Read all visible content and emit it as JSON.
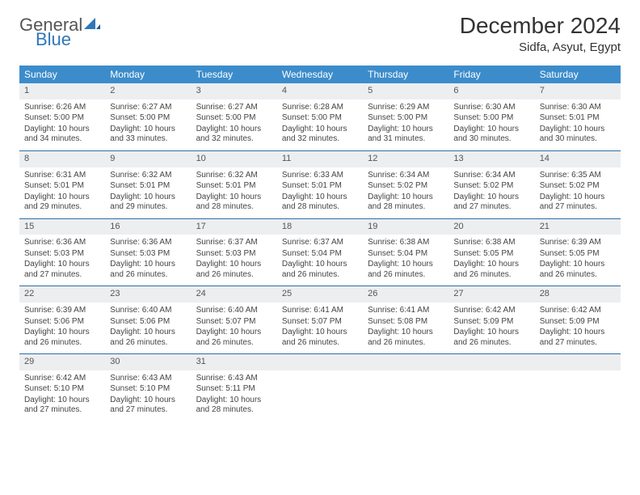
{
  "logo": {
    "line1": "General",
    "line2": "Blue"
  },
  "title": "December 2024",
  "location": "Sidfa, Asyut, Egypt",
  "colors": {
    "header_bg": "#3c8ccb",
    "daynum_bg": "#eceef0",
    "week_border": "#2f6fa5",
    "logo_blue": "#2f77b8"
  },
  "days_of_week": [
    "Sunday",
    "Monday",
    "Tuesday",
    "Wednesday",
    "Thursday",
    "Friday",
    "Saturday"
  ],
  "weeks": [
    [
      {
        "n": "1",
        "sr": "6:26 AM",
        "ss": "5:00 PM",
        "dl": "10 hours and 34 minutes."
      },
      {
        "n": "2",
        "sr": "6:27 AM",
        "ss": "5:00 PM",
        "dl": "10 hours and 33 minutes."
      },
      {
        "n": "3",
        "sr": "6:27 AM",
        "ss": "5:00 PM",
        "dl": "10 hours and 32 minutes."
      },
      {
        "n": "4",
        "sr": "6:28 AM",
        "ss": "5:00 PM",
        "dl": "10 hours and 32 minutes."
      },
      {
        "n": "5",
        "sr": "6:29 AM",
        "ss": "5:00 PM",
        "dl": "10 hours and 31 minutes."
      },
      {
        "n": "6",
        "sr": "6:30 AM",
        "ss": "5:00 PM",
        "dl": "10 hours and 30 minutes."
      },
      {
        "n": "7",
        "sr": "6:30 AM",
        "ss": "5:01 PM",
        "dl": "10 hours and 30 minutes."
      }
    ],
    [
      {
        "n": "8",
        "sr": "6:31 AM",
        "ss": "5:01 PM",
        "dl": "10 hours and 29 minutes."
      },
      {
        "n": "9",
        "sr": "6:32 AM",
        "ss": "5:01 PM",
        "dl": "10 hours and 29 minutes."
      },
      {
        "n": "10",
        "sr": "6:32 AM",
        "ss": "5:01 PM",
        "dl": "10 hours and 28 minutes."
      },
      {
        "n": "11",
        "sr": "6:33 AM",
        "ss": "5:01 PM",
        "dl": "10 hours and 28 minutes."
      },
      {
        "n": "12",
        "sr": "6:34 AM",
        "ss": "5:02 PM",
        "dl": "10 hours and 28 minutes."
      },
      {
        "n": "13",
        "sr": "6:34 AM",
        "ss": "5:02 PM",
        "dl": "10 hours and 27 minutes."
      },
      {
        "n": "14",
        "sr": "6:35 AM",
        "ss": "5:02 PM",
        "dl": "10 hours and 27 minutes."
      }
    ],
    [
      {
        "n": "15",
        "sr": "6:36 AM",
        "ss": "5:03 PM",
        "dl": "10 hours and 27 minutes."
      },
      {
        "n": "16",
        "sr": "6:36 AM",
        "ss": "5:03 PM",
        "dl": "10 hours and 26 minutes."
      },
      {
        "n": "17",
        "sr": "6:37 AM",
        "ss": "5:03 PM",
        "dl": "10 hours and 26 minutes."
      },
      {
        "n": "18",
        "sr": "6:37 AM",
        "ss": "5:04 PM",
        "dl": "10 hours and 26 minutes."
      },
      {
        "n": "19",
        "sr": "6:38 AM",
        "ss": "5:04 PM",
        "dl": "10 hours and 26 minutes."
      },
      {
        "n": "20",
        "sr": "6:38 AM",
        "ss": "5:05 PM",
        "dl": "10 hours and 26 minutes."
      },
      {
        "n": "21",
        "sr": "6:39 AM",
        "ss": "5:05 PM",
        "dl": "10 hours and 26 minutes."
      }
    ],
    [
      {
        "n": "22",
        "sr": "6:39 AM",
        "ss": "5:06 PM",
        "dl": "10 hours and 26 minutes."
      },
      {
        "n": "23",
        "sr": "6:40 AM",
        "ss": "5:06 PM",
        "dl": "10 hours and 26 minutes."
      },
      {
        "n": "24",
        "sr": "6:40 AM",
        "ss": "5:07 PM",
        "dl": "10 hours and 26 minutes."
      },
      {
        "n": "25",
        "sr": "6:41 AM",
        "ss": "5:07 PM",
        "dl": "10 hours and 26 minutes."
      },
      {
        "n": "26",
        "sr": "6:41 AM",
        "ss": "5:08 PM",
        "dl": "10 hours and 26 minutes."
      },
      {
        "n": "27",
        "sr": "6:42 AM",
        "ss": "5:09 PM",
        "dl": "10 hours and 26 minutes."
      },
      {
        "n": "28",
        "sr": "6:42 AM",
        "ss": "5:09 PM",
        "dl": "10 hours and 27 minutes."
      }
    ],
    [
      {
        "n": "29",
        "sr": "6:42 AM",
        "ss": "5:10 PM",
        "dl": "10 hours and 27 minutes."
      },
      {
        "n": "30",
        "sr": "6:43 AM",
        "ss": "5:10 PM",
        "dl": "10 hours and 27 minutes."
      },
      {
        "n": "31",
        "sr": "6:43 AM",
        "ss": "5:11 PM",
        "dl": "10 hours and 28 minutes."
      },
      {
        "empty": true
      },
      {
        "empty": true
      },
      {
        "empty": true
      },
      {
        "empty": true
      }
    ]
  ],
  "labels": {
    "sunrise": "Sunrise: ",
    "sunset": "Sunset: ",
    "daylight": "Daylight: "
  }
}
